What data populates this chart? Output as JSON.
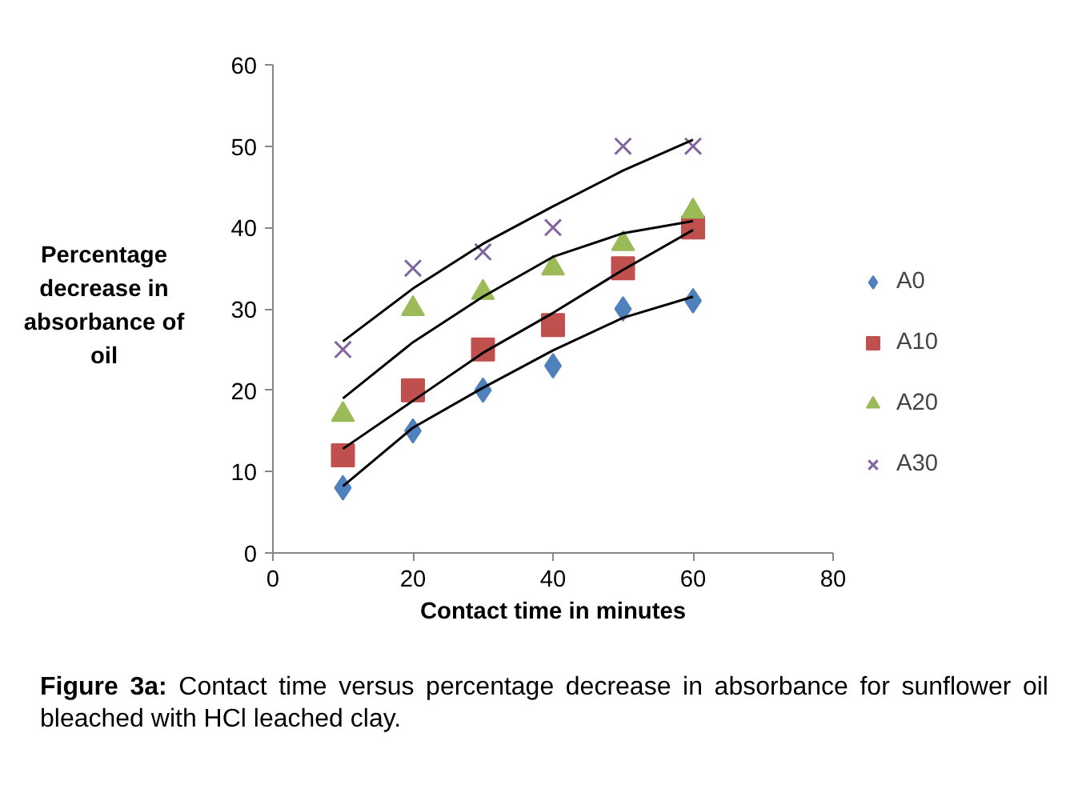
{
  "chart_data": {
    "type": "scatter",
    "xlabel": "Contact time in minutes",
    "ylabel": "Percentage decrease in absorbance of oil",
    "x": [
      10,
      20,
      30,
      40,
      50,
      60
    ],
    "series": [
      {
        "name": "A0",
        "color": "#4f81bd",
        "marker": "diamond",
        "values": [
          8,
          15,
          20,
          23,
          30,
          31
        ]
      },
      {
        "name": "A10",
        "color": "#c0504d",
        "marker": "square",
        "values": [
          12,
          20,
          25,
          28,
          35,
          40
        ]
      },
      {
        "name": "A20",
        "color": "#9bbb59",
        "marker": "triangle",
        "values": [
          17,
          30,
          32,
          35,
          38,
          42
        ]
      },
      {
        "name": "A30",
        "color": "#8064a2",
        "marker": "cross",
        "values": [
          25,
          35,
          37,
          40,
          50,
          50
        ]
      },
      {
        "type": "line",
        "color": "#000000",
        "marker": "none",
        "x": [
          10,
          20,
          30,
          40,
          50,
          60
        ],
        "values": [
          8.2,
          15.4,
          20.3,
          24.9,
          28.9,
          31.5
        ]
      },
      {
        "type": "line",
        "color": "#000000",
        "marker": "none",
        "x": [
          10,
          20,
          30,
          40,
          50,
          60
        ],
        "values": [
          12.8,
          18.7,
          24.6,
          29.5,
          34.8,
          39.7
        ]
      },
      {
        "type": "line",
        "color": "#000000",
        "marker": "none",
        "x": [
          10,
          20,
          30,
          40,
          50,
          60
        ],
        "values": [
          19,
          25.9,
          31.5,
          36.4,
          39.3,
          40.8
        ]
      },
      {
        "type": "line",
        "color": "#000000",
        "marker": "none",
        "x": [
          10,
          20,
          30,
          40,
          50,
          60
        ],
        "values": [
          26,
          32.5,
          38,
          42.6,
          47,
          50.8
        ]
      }
    ],
    "xlim": [
      0,
      80
    ],
    "xticks": [
      0,
      20,
      40,
      60,
      80
    ],
    "ylim": [
      0,
      60
    ],
    "yticks": [
      0,
      10,
      20,
      30,
      40,
      50,
      60
    ],
    "grid": false,
    "legend": "right",
    "annotations": [
      "Figure 3a: Contact time versus percentage decrease in absorbance for sunflower oil bleached with HCl leached clay."
    ]
  }
}
